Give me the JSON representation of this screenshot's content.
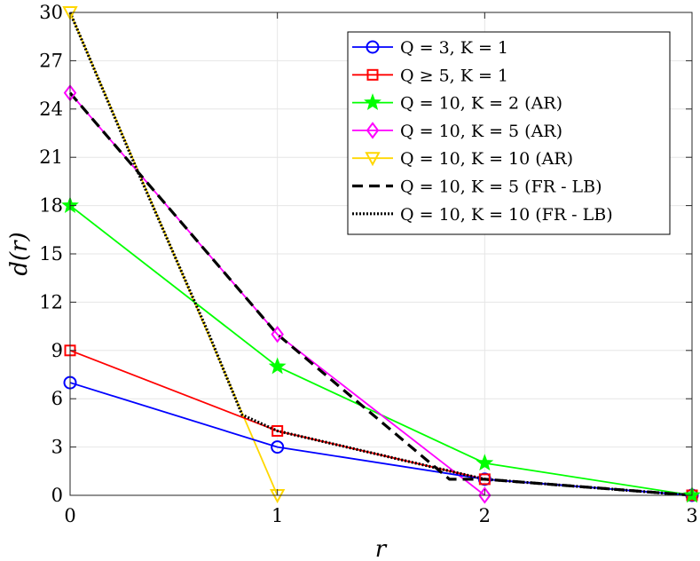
{
  "chart_data": {
    "type": "line",
    "xlabel": "r",
    "ylabel": "d(r)",
    "xlim": [
      0,
      3
    ],
    "ylim": [
      0,
      30
    ],
    "xticks": [
      0,
      1,
      2,
      3
    ],
    "yticks": [
      0,
      3,
      6,
      9,
      12,
      15,
      18,
      21,
      24,
      27,
      30
    ],
    "grid": true,
    "legend_position": "top-right",
    "series": [
      {
        "name": "Q = 3, K = 1",
        "x": [
          0,
          1,
          2,
          3
        ],
        "y": [
          7,
          3,
          1,
          0
        ],
        "color": "#0000ff",
        "dash": "solid",
        "marker": "circle"
      },
      {
        "name": "Q ≥ 5, K = 1",
        "x": [
          0,
          1,
          2,
          3
        ],
        "y": [
          9,
          4,
          1,
          0
        ],
        "color": "#ff0000",
        "dash": "solid",
        "marker": "square"
      },
      {
        "name": "Q = 10, K = 2 (AR)",
        "x": [
          0,
          1,
          2,
          3
        ],
        "y": [
          18,
          8,
          2,
          0
        ],
        "color": "#00ff00",
        "dash": "solid",
        "marker": "star"
      },
      {
        "name": "Q = 10, K = 5 (AR)",
        "x": [
          0,
          1,
          2
        ],
        "y": [
          25,
          10,
          0
        ],
        "color": "#ff00ff",
        "dash": "solid",
        "marker": "diamond"
      },
      {
        "name": "Q = 10, K = 10 (AR)",
        "x": [
          0,
          1
        ],
        "y": [
          30,
          0
        ],
        "color": "#ffd700",
        "dash": "solid",
        "marker": "triangle-down"
      },
      {
        "name": "Q = 10, K = 5 (FR - LB)",
        "x": [
          0,
          1,
          1.83,
          2,
          3
        ],
        "y": [
          25,
          10,
          1,
          1,
          0
        ],
        "color": "#000000",
        "dash": "dashed",
        "marker": "none"
      },
      {
        "name": "Q = 10, K = 10 (FR - LB)",
        "x": [
          0,
          0.33,
          0.67,
          0.83,
          1,
          2,
          3
        ],
        "y": [
          30,
          20,
          10,
          5,
          4,
          1,
          0
        ],
        "color": "#000000",
        "dash": "dotted",
        "marker": "none"
      }
    ]
  }
}
